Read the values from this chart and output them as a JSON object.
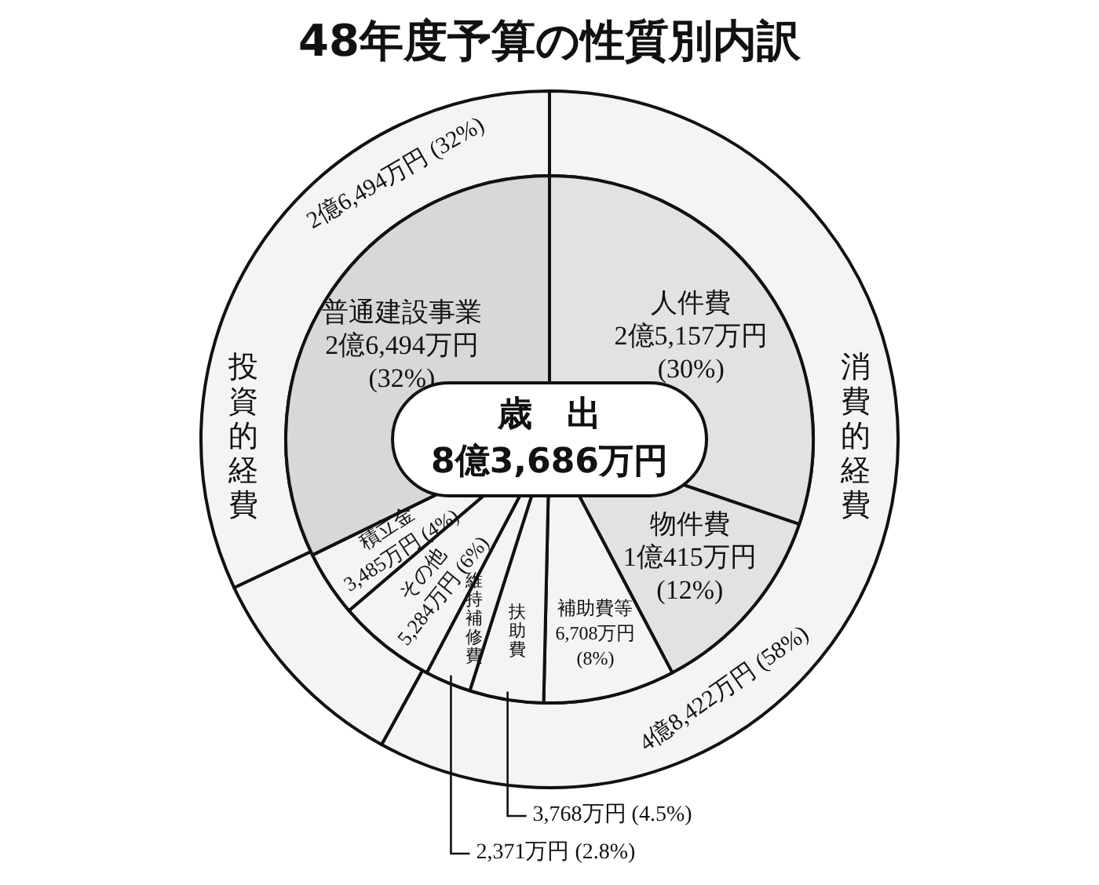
{
  "chart_data": [
    {
      "type": "pie",
      "title": "48年度予算の性質別内訳",
      "categories": [
        "人件費",
        "物件費",
        "補助費等",
        "扶助費",
        "維持補修費",
        "その他",
        "積立金",
        "普通建設事業"
      ],
      "values": [
        30,
        12,
        8,
        4.5,
        2.8,
        6,
        4,
        32
      ],
      "value_labels": [
        "2億5,157万円 (30%)",
        "1億415万円 (12%)",
        "6,708万円 (8%)",
        "3,768万円 (4.5%)",
        "2,371万円 (2.8%)",
        "5,284万円 (6%)",
        "3,485万円 (4%)",
        "2億6,494万円 (32%)"
      ],
      "colors": [
        "#e2e2e2",
        "#e2e2e2",
        "#f4f4f4",
        "#f4f4f4",
        "#f4f4f4",
        "#f4f4f4",
        "#f4f4f4",
        "#d8d8d8"
      ],
      "annotations": [
        "歳　出",
        "8億3,686万円"
      ]
    },
    {
      "type": "donut",
      "categories": [
        "消費的経費",
        null,
        "投資的経費"
      ],
      "values": [
        58,
        10,
        32
      ],
      "value_labels": [
        "4億8,422万円 (58%)",
        null,
        "2億6,494万円 (32%)"
      ],
      "colors": [
        "#f4f4f4",
        "#f4f4f4",
        "#f4f4f4"
      ]
    }
  ]
}
